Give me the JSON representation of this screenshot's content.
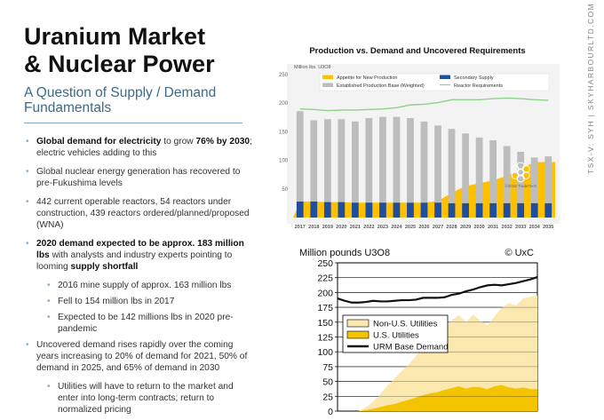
{
  "slide": {
    "title_line1": "Uranium Market",
    "title_line2": "& Nuclear Power",
    "subtitle": "A Question of Supply / Demand Fundamentals",
    "side_text": "TSX-V: SYH  |  SKYHARBOURLTD.COM"
  },
  "bullets": [
    {
      "bold": "Global demand for electricity",
      "text": " to grow ",
      "bold2": "76% by 2030",
      "text2": "; electric vehicles adding to this"
    },
    {
      "text": "Global nuclear energy generation has recovered to pre-Fukushima levels"
    },
    {
      "text": "442 current operable reactors, 54 reactors under construction, 439 reactors ordered/planned/proposed (WNA)"
    },
    {
      "bold": "2020 demand expected to be approx. 183 million lbs",
      "text": " with analysts and industry experts pointing to looming ",
      "bold2": "supply shortfall"
    },
    {
      "text": "2016 mine supply of approx. 163 million lbs",
      "sub": true
    },
    {
      "text": "Fell to 154 million lbs in 2017",
      "sub": true
    },
    {
      "text": "Expected to be 142 millions lbs in 2020 pre-pandemic",
      "sub": true
    },
    {
      "text": "Uncovered demand rises rapidly over the coming years increasing to 20% of demand for 2021, 50% of demand in 2025, and 65% of demand in 2030"
    },
    {
      "text": "Utilities will have to return to the market and enter into long-term contracts; return to normalized pricing",
      "sub": true
    }
  ],
  "chart_data": [
    {
      "type": "bar",
      "title": "Production vs. Demand and Uncovered Requirements",
      "ylabel": "Million lbs. U3O8",
      "categories": [
        "2017",
        "2018",
        "2019",
        "2020",
        "2021",
        "2022",
        "2023",
        "2024",
        "2025",
        "2026",
        "2027",
        "2028",
        "2029",
        "2030",
        "2031",
        "2032",
        "2033",
        "2034",
        "2035"
      ],
      "ylim": [
        0,
        250
      ],
      "yticks": [
        "",
        "50",
        "100",
        "150",
        "200",
        "250"
      ],
      "stacked": true,
      "series": [
        {
          "name": "Secondary Supply",
          "kind": "bar",
          "color": "#1f4e9c",
          "values": [
            28,
            28,
            27,
            27,
            26,
            26,
            26,
            26,
            26,
            26,
            26,
            25,
            25,
            25,
            25,
            25,
            25,
            25,
            25
          ]
        },
        {
          "name": "Established Production Base (Weighted)",
          "kind": "bar",
          "color": "#bdbdbd",
          "values": [
            158,
            142,
            145,
            145,
            142,
            148,
            150,
            150,
            148,
            142,
            135,
            130,
            122,
            115,
            110,
            100,
            90,
            80,
            82
          ]
        },
        {
          "name": "Appetite for New Production",
          "kind": "area",
          "color": "#ffc000",
          "values": [
            0,
            0,
            0,
            0,
            0,
            0,
            0,
            0,
            0,
            0,
            3,
            18,
            30,
            35,
            40,
            48,
            60,
            72,
            72
          ]
        },
        {
          "name": "Reactor Requirements",
          "kind": "line",
          "color": "#8fd18a",
          "values": [
            190,
            189,
            187,
            188,
            188,
            189,
            190,
            192,
            197,
            198,
            201,
            206,
            206,
            206,
            208,
            209,
            208,
            206,
            205
          ]
        }
      ],
      "watermark": "©2019 TradeTech"
    },
    {
      "type": "area",
      "title": "Million pounds U3O8",
      "credit": "© UxC",
      "ylim": [
        0,
        250
      ],
      "yticks": [
        "0",
        "25",
        "50",
        "75",
        "100",
        "125",
        "150",
        "175",
        "200",
        "225",
        "250"
      ],
      "x": [
        0,
        1,
        2,
        3,
        4,
        5,
        6,
        7,
        8,
        9,
        10,
        11,
        12,
        13,
        14,
        15,
        16,
        17,
        18,
        19,
        20,
        21,
        22,
        23,
        24,
        25,
        26,
        27,
        28
      ],
      "series": [
        {
          "name": "U.S. Utilities",
          "kind": "area",
          "color": "#f5c400",
          "values": [
            0,
            0,
            0,
            0,
            2,
            4,
            7,
            10,
            12,
            16,
            19,
            23,
            27,
            30,
            32,
            36,
            39,
            42,
            38,
            41,
            40,
            37,
            42,
            44,
            40,
            38,
            40,
            37,
            37
          ]
        },
        {
          "name": "Non-U.S. Utilities",
          "kind": "area",
          "color": "#fbe8ae",
          "values": [
            0,
            0,
            0,
            0,
            5,
            12,
            22,
            33,
            43,
            52,
            60,
            70,
            82,
            92,
            100,
            105,
            114,
            120,
            112,
            122,
            112,
            108,
            118,
            130,
            142,
            140,
            150,
            156,
            158
          ]
        },
        {
          "name": "URM Base Demand",
          "kind": "line",
          "color": "#111111",
          "values": [
            190,
            186,
            183,
            183,
            184,
            186,
            185,
            185,
            186,
            187,
            187,
            188,
            191,
            191,
            191,
            192,
            196,
            198,
            202,
            205,
            209,
            212,
            213,
            212,
            214,
            216,
            219,
            222,
            226
          ]
        }
      ]
    }
  ]
}
